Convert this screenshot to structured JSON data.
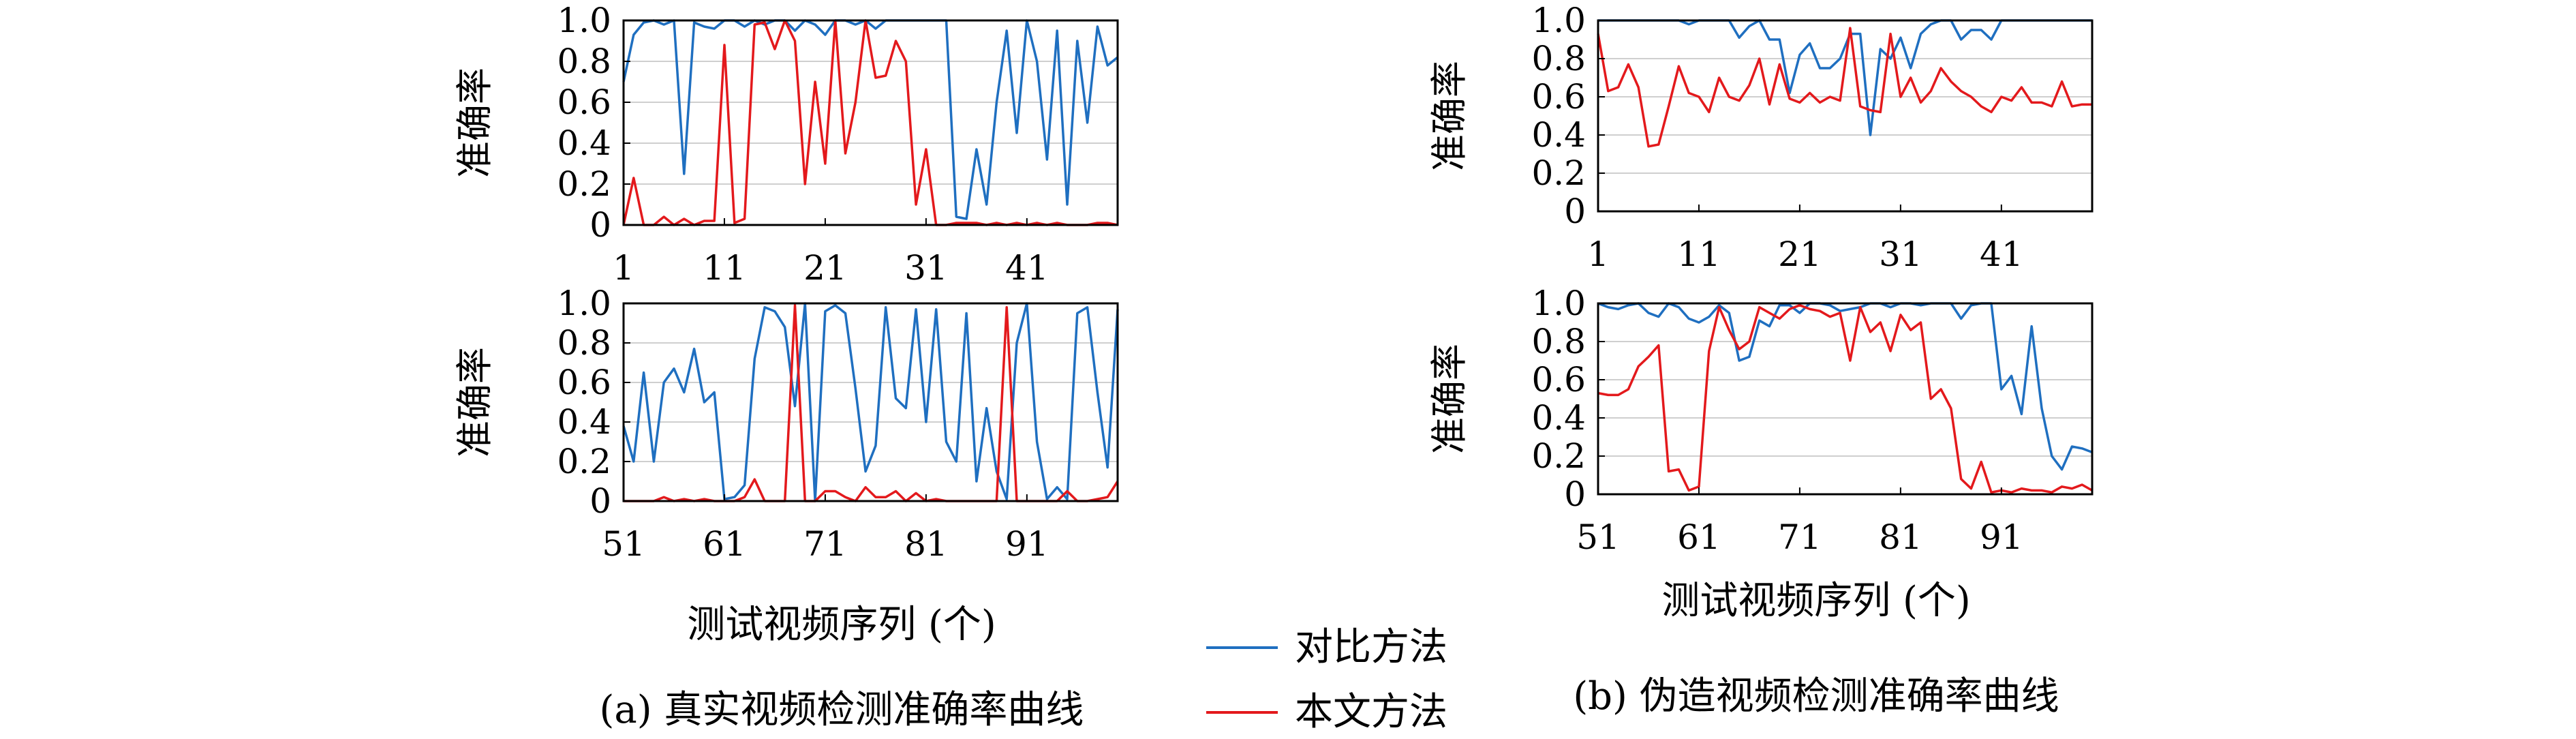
{
  "figure": {
    "xlabel": "测试视频序列 (个)",
    "legend": [
      {
        "label": "对比方法",
        "color": "#1f6fc0"
      },
      {
        "label": "本文方法",
        "color": "#e3191c"
      }
    ],
    "captions": [
      "(a) 真实视频检测准确率曲线",
      "(b) 伪造视频检测准确率曲线"
    ]
  },
  "chart_data": [
    {
      "type": "line",
      "title": "",
      "xlabel": "",
      "ylabel": "准确率",
      "xlim": [
        1,
        50
      ],
      "ylim": [
        0,
        1.0
      ],
      "xticks": [
        "1",
        "11",
        "21",
        "31",
        "41"
      ],
      "yticks": [
        "0",
        "0.2",
        "0.4",
        "0.6",
        "0.8",
        "1.0"
      ],
      "grid": "horizontal",
      "x": [
        1,
        2,
        3,
        4,
        5,
        6,
        7,
        8,
        9,
        10,
        11,
        12,
        13,
        14,
        15,
        16,
        17,
        18,
        19,
        20,
        21,
        22,
        23,
        24,
        25,
        26,
        27,
        28,
        29,
        30,
        31,
        32,
        33,
        34,
        35,
        36,
        37,
        38,
        39,
        40,
        41,
        42,
        43,
        44,
        45,
        46,
        47,
        48,
        49,
        50
      ],
      "series": [
        {
          "name": "对比方法",
          "color": "#1f6fc0",
          "values": [
            0.7,
            0.93,
            0.99,
            1.0,
            0.98,
            1.0,
            0.25,
            0.99,
            0.97,
            0.96,
            1.0,
            1.0,
            0.97,
            1.0,
            0.98,
            1.0,
            1.0,
            0.95,
            1.0,
            0.98,
            0.93,
            1.0,
            1.0,
            0.98,
            1.0,
            0.96,
            1.0,
            1.0,
            1.0,
            1.0,
            1.0,
            1.0,
            1.0,
            0.04,
            0.03,
            0.37,
            0.1,
            0.6,
            0.95,
            0.45,
            1.0,
            0.8,
            0.32,
            0.95,
            0.1,
            0.9,
            0.5,
            0.97,
            0.78,
            0.82
          ]
        },
        {
          "name": "本文方法",
          "color": "#e3191c",
          "values": [
            0.0,
            0.23,
            0.0,
            0.0,
            0.04,
            0.0,
            0.03,
            0.0,
            0.02,
            0.02,
            0.88,
            0.01,
            0.03,
            0.98,
            0.99,
            0.86,
            1.0,
            0.9,
            0.2,
            0.7,
            0.3,
            1.0,
            0.35,
            0.6,
            1.0,
            0.72,
            0.73,
            0.9,
            0.8,
            0.1,
            0.37,
            0.0,
            0.0,
            0.01,
            0.01,
            0.01,
            0.0,
            0.01,
            0.0,
            0.01,
            0.0,
            0.01,
            0.0,
            0.01,
            0.0,
            0.0,
            0.0,
            0.01,
            0.01,
            0.0
          ]
        }
      ]
    },
    {
      "type": "line",
      "title": "",
      "xlabel": "测试视频序列 (个)",
      "ylabel": "准确率",
      "xlim": [
        51,
        100
      ],
      "ylim": [
        0,
        1.0
      ],
      "xticks": [
        "51",
        "61",
        "71",
        "81",
        "91"
      ],
      "yticks": [
        "0",
        "0.2",
        "0.4",
        "0.6",
        "0.8",
        "1.0"
      ],
      "grid": "horizontal",
      "x": [
        51,
        52,
        53,
        54,
        55,
        56,
        57,
        58,
        59,
        60,
        61,
        62,
        63,
        64,
        65,
        66,
        67,
        68,
        69,
        70,
        71,
        72,
        73,
        74,
        75,
        76,
        77,
        78,
        79,
        80,
        81,
        82,
        83,
        84,
        85,
        86,
        87,
        88,
        89,
        90,
        91,
        92,
        93,
        94,
        95,
        96,
        97,
        98,
        99,
        100
      ],
      "series": [
        {
          "name": "对比方法",
          "color": "#1f6fc0",
          "values": [
            0.38,
            0.2,
            0.65,
            0.2,
            0.6,
            0.67,
            0.55,
            0.77,
            0.5,
            0.55,
            0.01,
            0.02,
            0.08,
            0.72,
            0.98,
            0.96,
            0.88,
            0.48,
            1.0,
            0.0,
            0.96,
            0.99,
            0.95,
            0.57,
            0.15,
            0.28,
            0.98,
            0.52,
            0.47,
            0.97,
            0.4,
            0.97,
            0.3,
            0.2,
            0.95,
            0.1,
            0.47,
            0.15,
            0.01,
            0.8,
            1.0,
            0.3,
            0.01,
            0.07,
            0.01,
            0.95,
            0.98,
            0.55,
            0.17,
            0.97
          ]
        },
        {
          "name": "本文方法",
          "color": "#e3191c",
          "values": [
            0.0,
            0.0,
            0.0,
            0.0,
            0.02,
            0.0,
            0.01,
            0.0,
            0.01,
            0.0,
            0.0,
            0.0,
            0.02,
            0.11,
            0.0,
            0.0,
            0.0,
            0.99,
            0.0,
            0.0,
            0.05,
            0.05,
            0.02,
            0.0,
            0.07,
            0.02,
            0.02,
            0.05,
            0.0,
            0.04,
            0.0,
            0.01,
            0.0,
            0.0,
            0.0,
            0.0,
            0.0,
            0.0,
            0.98,
            0.0,
            0.0,
            0.0,
            0.0,
            0.0,
            0.05,
            0.0,
            0.0,
            0.01,
            0.02,
            0.1
          ]
        }
      ]
    },
    {
      "type": "line",
      "title": "",
      "xlabel": "",
      "ylabel": "准确率",
      "xlim": [
        1,
        50
      ],
      "ylim": [
        0,
        1.0
      ],
      "xticks": [
        "1",
        "11",
        "21",
        "31",
        "41"
      ],
      "yticks": [
        "0",
        "0.2",
        "0.4",
        "0.6",
        "0.8",
        "1.0"
      ],
      "grid": "horizontal",
      "x": [
        1,
        2,
        3,
        4,
        5,
        6,
        7,
        8,
        9,
        10,
        11,
        12,
        13,
        14,
        15,
        16,
        17,
        18,
        19,
        20,
        21,
        22,
        23,
        24,
        25,
        26,
        27,
        28,
        29,
        30,
        31,
        32,
        33,
        34,
        35,
        36,
        37,
        38,
        39,
        40,
        41,
        42,
        43,
        44,
        45,
        46,
        47,
        48,
        49,
        50
      ],
      "series": [
        {
          "name": "对比方法",
          "color": "#1f6fc0",
          "values": [
            1.0,
            1.0,
            1.0,
            1.0,
            1.0,
            1.0,
            1.0,
            1.0,
            1.0,
            0.98,
            1.0,
            1.0,
            1.0,
            1.0,
            0.91,
            0.97,
            1.0,
            0.9,
            0.9,
            0.62,
            0.82,
            0.88,
            0.75,
            0.75,
            0.8,
            0.93,
            0.93,
            0.4,
            0.85,
            0.8,
            0.91,
            0.75,
            0.93,
            0.98,
            1.0,
            1.0,
            0.9,
            0.95,
            0.95,
            0.9,
            1.0,
            1.0,
            1.0,
            1.0,
            1.0,
            1.0,
            1.0,
            1.0,
            1.0,
            1.0
          ]
        },
        {
          "name": "本文方法",
          "color": "#e3191c",
          "values": [
            0.93,
            0.63,
            0.65,
            0.77,
            0.65,
            0.34,
            0.35,
            0.55,
            0.76,
            0.62,
            0.6,
            0.52,
            0.7,
            0.6,
            0.58,
            0.66,
            0.8,
            0.56,
            0.77,
            0.59,
            0.57,
            0.62,
            0.57,
            0.6,
            0.58,
            0.96,
            0.55,
            0.53,
            0.52,
            0.93,
            0.6,
            0.7,
            0.57,
            0.63,
            0.75,
            0.68,
            0.63,
            0.6,
            0.55,
            0.52,
            0.6,
            0.58,
            0.65,
            0.57,
            0.57,
            0.55,
            0.68,
            0.55,
            0.56,
            0.56
          ]
        }
      ]
    },
    {
      "type": "line",
      "title": "",
      "xlabel": "测试视频序列 (个)",
      "ylabel": "准确率",
      "xlim": [
        51,
        100
      ],
      "ylim": [
        0,
        1.0
      ],
      "xticks": [
        "51",
        "61",
        "71",
        "81",
        "91"
      ],
      "yticks": [
        "0",
        "0.2",
        "0.4",
        "0.6",
        "0.8",
        "1.0"
      ],
      "grid": "horizontal",
      "x": [
        51,
        52,
        53,
        54,
        55,
        56,
        57,
        58,
        59,
        60,
        61,
        62,
        63,
        64,
        65,
        66,
        67,
        68,
        69,
        70,
        71,
        72,
        73,
        74,
        75,
        76,
        77,
        78,
        79,
        80,
        81,
        82,
        83,
        84,
        85,
        86,
        87,
        88,
        89,
        90,
        91,
        92,
        93,
        94,
        95,
        96,
        97,
        98,
        99,
        100
      ],
      "series": [
        {
          "name": "对比方法",
          "color": "#1f6fc0",
          "values": [
            1.0,
            0.98,
            0.97,
            0.99,
            1.0,
            0.95,
            0.93,
            1.0,
            0.98,
            0.92,
            0.9,
            0.93,
            0.99,
            0.95,
            0.7,
            0.72,
            0.91,
            0.88,
            0.99,
            0.99,
            0.95,
            1.0,
            1.0,
            0.99,
            0.96,
            0.97,
            0.98,
            1.0,
            1.0,
            0.98,
            1.0,
            1.0,
            0.99,
            1.0,
            1.0,
            1.0,
            0.92,
            0.99,
            1.0,
            1.0,
            0.55,
            0.62,
            0.42,
            0.88,
            0.45,
            0.2,
            0.13,
            0.25,
            0.24,
            0.22
          ]
        },
        {
          "name": "本文方法",
          "color": "#e3191c",
          "values": [
            0.53,
            0.52,
            0.52,
            0.55,
            0.67,
            0.72,
            0.78,
            0.12,
            0.13,
            0.02,
            0.04,
            0.75,
            0.98,
            0.86,
            0.76,
            0.8,
            0.98,
            0.95,
            0.92,
            0.97,
            0.99,
            0.97,
            0.96,
            0.93,
            0.95,
            0.7,
            0.98,
            0.85,
            0.9,
            0.75,
            0.94,
            0.86,
            0.9,
            0.5,
            0.55,
            0.45,
            0.08,
            0.03,
            0.17,
            0.01,
            0.02,
            0.01,
            0.03,
            0.02,
            0.02,
            0.01,
            0.04,
            0.03,
            0.05,
            0.02
          ]
        }
      ]
    }
  ]
}
